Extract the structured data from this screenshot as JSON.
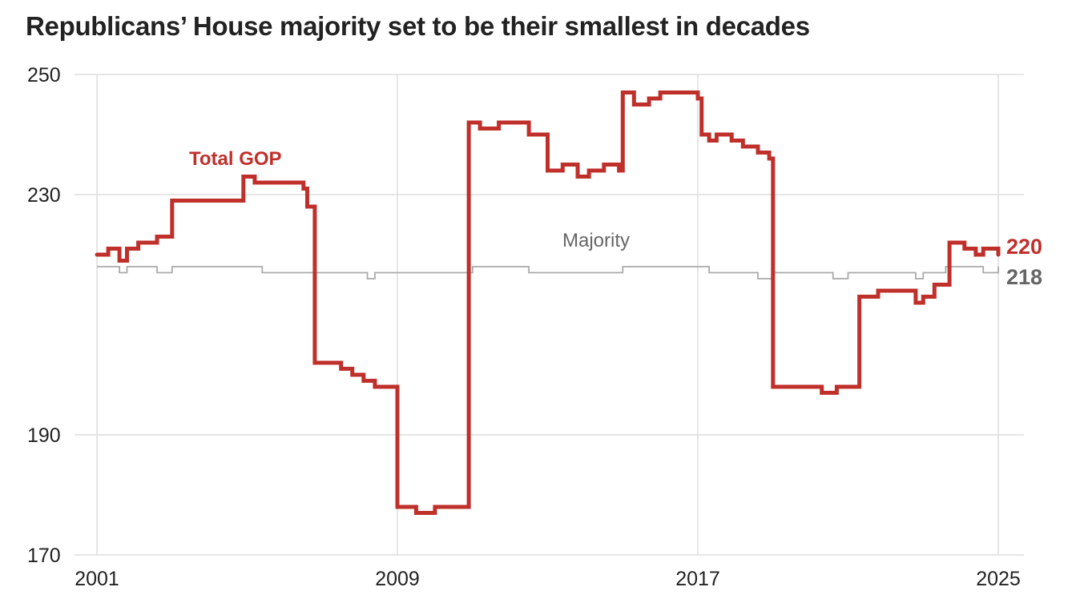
{
  "chart_data": {
    "type": "line",
    "title": "Republicans’ House majority set to be their smallest in decades",
    "xlabel": "",
    "ylabel": "",
    "xlim": [
      2001,
      2025
    ],
    "ylim": [
      170,
      250
    ],
    "x_ticks": [
      "2001",
      "2009",
      "2017",
      "2025"
    ],
    "y_ticks": [
      "250",
      "230",
      "190",
      "170"
    ],
    "grid": true,
    "colors": {
      "gop": "#c0302b",
      "majority": "#aaaaaa",
      "grid": "#dddddd",
      "majority_label": "#666666"
    },
    "series": [
      {
        "name": "Total GOP",
        "end_label": "220",
        "step": true,
        "points": [
          [
            2001.0,
            220
          ],
          [
            2001.3,
            221
          ],
          [
            2001.6,
            219
          ],
          [
            2001.8,
            221
          ],
          [
            2002.1,
            222
          ],
          [
            2002.6,
            223
          ],
          [
            2003.0,
            229
          ],
          [
            2004.7,
            229
          ],
          [
            2004.9,
            233
          ],
          [
            2005.2,
            232
          ],
          [
            2006.5,
            231
          ],
          [
            2006.6,
            228
          ],
          [
            2006.8,
            202
          ],
          [
            2007.5,
            201
          ],
          [
            2007.8,
            200
          ],
          [
            2008.1,
            199
          ],
          [
            2008.4,
            198
          ],
          [
            2009.0,
            178
          ],
          [
            2009.5,
            177
          ],
          [
            2010.0,
            178
          ],
          [
            2010.9,
            242
          ],
          [
            2011.2,
            241
          ],
          [
            2011.7,
            242
          ],
          [
            2012.5,
            240
          ],
          [
            2013.0,
            234
          ],
          [
            2013.4,
            235
          ],
          [
            2013.8,
            233
          ],
          [
            2014.1,
            234
          ],
          [
            2014.5,
            235
          ],
          [
            2014.9,
            234
          ],
          [
            2015.0,
            247
          ],
          [
            2015.3,
            245
          ],
          [
            2015.7,
            246
          ],
          [
            2016.0,
            247
          ],
          [
            2016.8,
            247
          ],
          [
            2017.0,
            246
          ],
          [
            2017.1,
            240
          ],
          [
            2017.3,
            239
          ],
          [
            2017.5,
            240
          ],
          [
            2017.9,
            239
          ],
          [
            2018.2,
            238
          ],
          [
            2018.6,
            237
          ],
          [
            2018.9,
            236
          ],
          [
            2019.0,
            198
          ],
          [
            2019.6,
            198
          ],
          [
            2020.3,
            197
          ],
          [
            2020.7,
            198
          ],
          [
            2021.3,
            213
          ],
          [
            2021.8,
            214
          ],
          [
            2022.5,
            214
          ],
          [
            2022.8,
            212
          ],
          [
            2023.0,
            213
          ],
          [
            2023.3,
            215
          ],
          [
            2023.7,
            222
          ],
          [
            2024.1,
            221
          ],
          [
            2024.4,
            220
          ],
          [
            2024.6,
            221
          ],
          [
            2025.0,
            220
          ]
        ]
      },
      {
        "name": "Majority",
        "end_label": "218",
        "step": true,
        "points": [
          [
            2001.0,
            218
          ],
          [
            2001.4,
            218
          ],
          [
            2001.6,
            217
          ],
          [
            2001.8,
            218
          ],
          [
            2002.4,
            218
          ],
          [
            2002.6,
            217
          ],
          [
            2003.0,
            218
          ],
          [
            2005.0,
            218
          ],
          [
            2005.4,
            217
          ],
          [
            2006.8,
            217
          ],
          [
            2007.3,
            217
          ],
          [
            2007.9,
            217
          ],
          [
            2008.2,
            216
          ],
          [
            2008.4,
            217
          ],
          [
            2009.0,
            217
          ],
          [
            2010.0,
            217
          ],
          [
            2011.0,
            218
          ],
          [
            2012.5,
            217
          ],
          [
            2013.0,
            217
          ],
          [
            2014.0,
            217
          ],
          [
            2014.5,
            217
          ],
          [
            2015.0,
            218
          ],
          [
            2017.0,
            218
          ],
          [
            2017.3,
            217
          ],
          [
            2018.0,
            217
          ],
          [
            2018.6,
            216
          ],
          [
            2019.0,
            217
          ],
          [
            2020.0,
            217
          ],
          [
            2020.6,
            216
          ],
          [
            2021.0,
            217
          ],
          [
            2021.6,
            217
          ],
          [
            2022.0,
            217
          ],
          [
            2022.8,
            216
          ],
          [
            2023.0,
            217
          ],
          [
            2023.6,
            218
          ],
          [
            2024.2,
            218
          ],
          [
            2024.6,
            217
          ],
          [
            2025.0,
            218
          ]
        ]
      }
    ],
    "annotations": [
      {
        "text": "Total GOP",
        "series": "Total GOP"
      },
      {
        "text": "Majority",
        "series": "Majority"
      }
    ]
  }
}
